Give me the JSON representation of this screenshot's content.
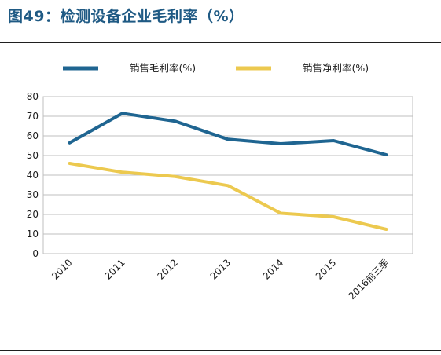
{
  "page_title": "图49：检测设备企业毛利率（%）",
  "colors": {
    "gross": "#1f6591",
    "net": "#ecc94f",
    "title": "#1f5a84",
    "grid": "#bfbfbf"
  },
  "chart_data": {
    "type": "line",
    "title": "",
    "xlabel": "",
    "ylabel": "",
    "categories": [
      "2010",
      "2011",
      "2012",
      "2013",
      "2014",
      "2015",
      "2016前三季"
    ],
    "ylim": [
      0,
      80
    ],
    "yticks": [
      0,
      10,
      20,
      30,
      40,
      50,
      60,
      70,
      80
    ],
    "grid": true,
    "legend_position": "top",
    "series": [
      {
        "name": "销售毛利率(%)",
        "color": "#1f6591",
        "values": [
          56.5,
          71.5,
          67.5,
          58.3,
          56.0,
          57.6,
          50.4
        ]
      },
      {
        "name": "销售净利率(%)",
        "color": "#ecc94f",
        "values": [
          46.0,
          41.5,
          39.3,
          34.7,
          20.6,
          18.8,
          12.4
        ]
      }
    ]
  }
}
